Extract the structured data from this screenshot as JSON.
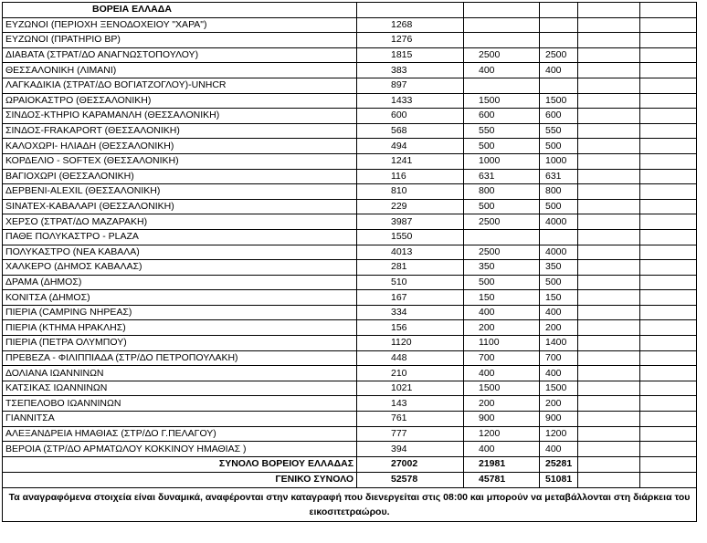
{
  "table": {
    "title": "ΒΟΡΕΙΑ ΕΛΛΑΔΑ",
    "rows": [
      [
        "ΕΥΖΩΝΟΙ (ΠΕΡΙΟΧΗ ΞΕΝΟΔΟΧΕΙΟΥ \"ΧΑΡΑ\")",
        1268,
        null,
        null
      ],
      [
        "ΕΥΖΩΝΟΙ (ΠΡΑΤΗΡΙΟ BP)",
        1276,
        null,
        null
      ],
      [
        "ΔΙΑΒΑΤΑ (ΣΤΡΑΤ/ΔΟ ΑΝΑΓΝΩΣΤΟΠΟΥΛΟΥ)",
        1815,
        2500,
        2500
      ],
      [
        "ΘΕΣΣΑΛΟΝΙΚΗ (ΛΙΜΑΝΙ)",
        383,
        400,
        400
      ],
      [
        "ΛΑΓΚΑΔΙΚΙΑ (ΣΤΡΑΤ/ΔΟ ΒΟΓΙΑΤΖΟΓΛΟΥ)-UNHCR",
        897,
        null,
        null
      ],
      [
        "ΩΡΑΙΟΚΑΣΤΡΟ (ΘΕΣΣΑΛΟΝΙΚΗ)",
        1433,
        1500,
        1500
      ],
      [
        "ΣΙΝΔΟΣ-ΚΤΗΡΙΟ ΚΑΡΑΜΑΝΛΗ (ΘΕΣΣΑΛΟΝΙΚΗ)",
        600,
        600,
        600
      ],
      [
        "ΣΙΝΔΟΣ-FRAKAPORT (ΘΕΣΣΑΛΟΝΙΚΗ)",
        568,
        550,
        550
      ],
      [
        "ΚΑΛΟΧΩΡΙ- ΗΛΙΑΔΗ (ΘΕΣΣΑΛΟΝΙΚΗ)",
        494,
        500,
        500
      ],
      [
        "ΚΟΡΔΕΛΙΟ - SOFTEX (ΘΕΣΣΑΛΟΝΙΚΗ)",
        1241,
        1000,
        1000
      ],
      [
        "ΒΑΓΙΟΧΩΡΙ (ΘΕΣΣΑΛΟΝΙΚΗ)",
        116,
        631,
        631
      ],
      [
        "ΔΕΡΒΕΝΙ-ALEXIL (ΘΕΣΣΑΛΟΝΙΚΗ)",
        810,
        800,
        800
      ],
      [
        "SINATEX-ΚΑΒΑΛΑΡΙ (ΘΕΣΣΑΛΟΝΙΚΗ)",
        229,
        500,
        500
      ],
      [
        "ΧΕΡΣΟ (ΣΤΡΑΤ/ΔΟ ΜΑΖΑΡΑΚΗ)",
        3987,
        2500,
        4000
      ],
      [
        "ΠΑΘΕ ΠΟΛΥΚΑΣΤΡΟ - PLAZA",
        1550,
        null,
        null
      ],
      [
        "ΠΟΛΥΚΑΣΤΡΟ (ΝΕΑ ΚΑΒΑΛΑ)",
        4013,
        2500,
        4000
      ],
      [
        "ΧΑΛΚΕΡΟ (ΔΗΜΟΣ ΚΑΒΑΛΑΣ)",
        281,
        350,
        350
      ],
      [
        "ΔΡΑΜΑ (ΔΗΜΟΣ)",
        510,
        500,
        500
      ],
      [
        "ΚΟΝΙΤΣΑ (ΔΗΜΟΣ)",
        167,
        150,
        150
      ],
      [
        "ΠΙΕΡΙΑ (CAMPING ΝΗΡΕΑΣ)",
        334,
        400,
        400
      ],
      [
        "ΠΙΕΡΙΑ (ΚΤΗΜΑ ΗΡΑΚΛΗΣ)",
        156,
        200,
        200
      ],
      [
        "ΠΙΕΡΙΑ (ΠΕΤΡΑ ΟΛΥΜΠΟΥ)",
        1120,
        1100,
        1400
      ],
      [
        "ΠΡΕΒΕΖΑ - ΦΙΛΙΠΠΙΑΔΑ (ΣΤΡ/ΔΟ ΠΕΤΡΟΠΟΥΛΑΚΗ)",
        448,
        700,
        700
      ],
      [
        "ΔΟΛΙΑΝΑ ΙΩΑΝΝΙΝΩΝ",
        210,
        400,
        400
      ],
      [
        "ΚΑΤΣΙΚΑΣ ΙΩΑΝΝΙΝΩΝ",
        1021,
        1500,
        1500
      ],
      [
        "ΤΣΕΠΕΛΟΒΟ ΙΩΑΝΝΙΝΩΝ",
        143,
        200,
        200
      ],
      [
        "ΓΙΑΝΝΙΤΣΑ",
        761,
        900,
        900
      ],
      [
        "ΑΛΕΞΑΝΔΡΕΙΑ ΗΜΑΘΙΑΣ (ΣΤΡ/ΔΟ Γ.ΠΕΛΑΓΟΥ)",
        777,
        1200,
        1200
      ],
      [
        "ΒΕΡΟΙΑ (ΣΤΡ/ΔΟ ΑΡΜΑΤΩΛΟΥ ΚΟΚΚΙΝΟΥ ΗΜΑΘΙΑΣ )",
        394,
        400,
        400
      ]
    ],
    "totals": [
      [
        "ΣΥΝΟΛΟ ΒΟΡΕΙΟΥ ΕΛΛΑΔΑΣ",
        27002,
        21981,
        25281
      ],
      [
        "ΓΕΝΙΚΟ ΣΥΝΟΛΟ",
        52578,
        45781,
        51081
      ]
    ],
    "footnote": "Τα αναγραφόμενα στοιχεία είναι δυναμικά, αναφέρονται στην καταγραφή που διενεργείται στις 08:00 και  μπορούν να μεταβάλλονται στη διάρκεια του εικοσιτετραώρου."
  }
}
